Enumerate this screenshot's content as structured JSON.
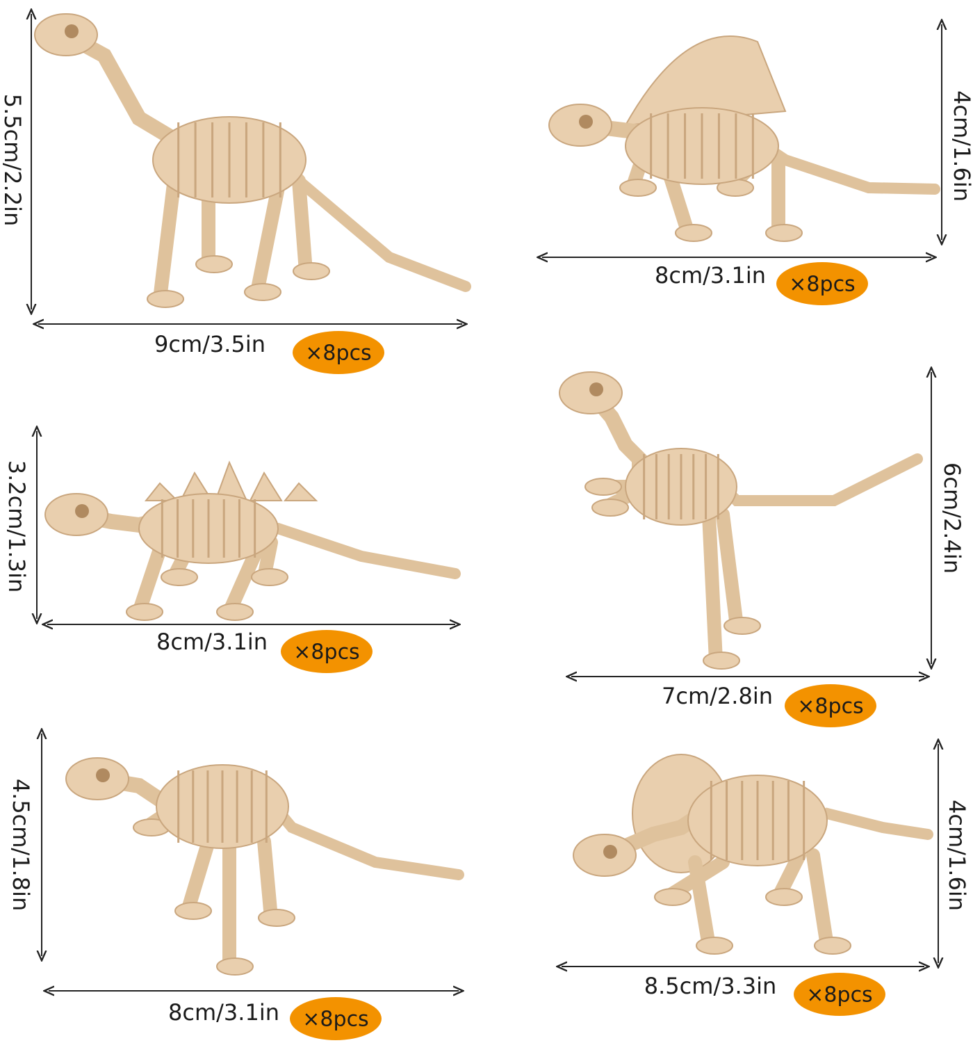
{
  "items": [
    {
      "width": "9cm/3.5in",
      "height": "5.5cm/2.2in",
      "quantity": "×8pcs"
    },
    {
      "width": "8cm/3.1in",
      "height": "4cm/1.6in",
      "quantity": "×8pcs"
    },
    {
      "width": "8cm/3.1in",
      "height": "3.2cm/1.3in",
      "quantity": "×8pcs"
    },
    {
      "width": "7cm/2.8in",
      "height": "6cm/2.4in",
      "quantity": "×8pcs"
    },
    {
      "width": "8cm/3.1in",
      "height": "4.5cm/1.8in",
      "quantity": "×8pcs"
    },
    {
      "width": "8.5cm/3.3in",
      "height": "4cm/1.6in",
      "quantity": "×8pcs"
    }
  ]
}
